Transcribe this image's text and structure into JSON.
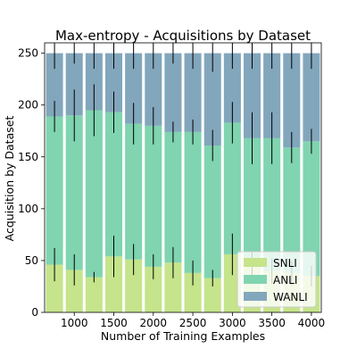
{
  "chart_data": {
    "type": "bar",
    "stacked": true,
    "title": "Max-entropy - Acquisitions by Dataset",
    "xlabel": "Number of Training Examples",
    "ylabel": "Acquisition by Dataset",
    "x": [
      750,
      1000,
      1250,
      1500,
      1750,
      2000,
      2250,
      2500,
      2750,
      3000,
      3250,
      3500,
      3750,
      4000
    ],
    "xticks": [
      1000,
      1500,
      2000,
      2500,
      3000,
      3500,
      4000
    ],
    "yticks": [
      0,
      50,
      100,
      150,
      200,
      250
    ],
    "ylim": [
      0,
      260
    ],
    "grid": false,
    "legend": "bottom-right",
    "series": [
      {
        "name": "SNLI",
        "color": "#c5e48b",
        "values": [
          46,
          41,
          34,
          54,
          51,
          44,
          48,
          38,
          33,
          56,
          44,
          40,
          38,
          35
        ],
        "errors": [
          16,
          15,
          5,
          20,
          15,
          12,
          15,
          12,
          8,
          20,
          14,
          12,
          12,
          10
        ]
      },
      {
        "name": "ANLI",
        "color": "#80d4b0",
        "values": [
          143,
          149,
          161,
          139,
          131,
          136,
          126,
          136,
          128,
          127,
          124,
          128,
          121,
          130
        ],
        "errors": [
          15,
          25,
          25,
          20,
          20,
          18,
          10,
          12,
          15,
          20,
          25,
          25,
          15,
          12
        ]
      },
      {
        "name": "WANLI",
        "color": "#82a6bc",
        "values": [
          61,
          60,
          55,
          57,
          68,
          70,
          76,
          76,
          89,
          67,
          82,
          82,
          91,
          85
        ],
        "errors": [
          15,
          10,
          15,
          15,
          15,
          15,
          10,
          15,
          18,
          15,
          15,
          15,
          15,
          15
        ]
      }
    ]
  }
}
